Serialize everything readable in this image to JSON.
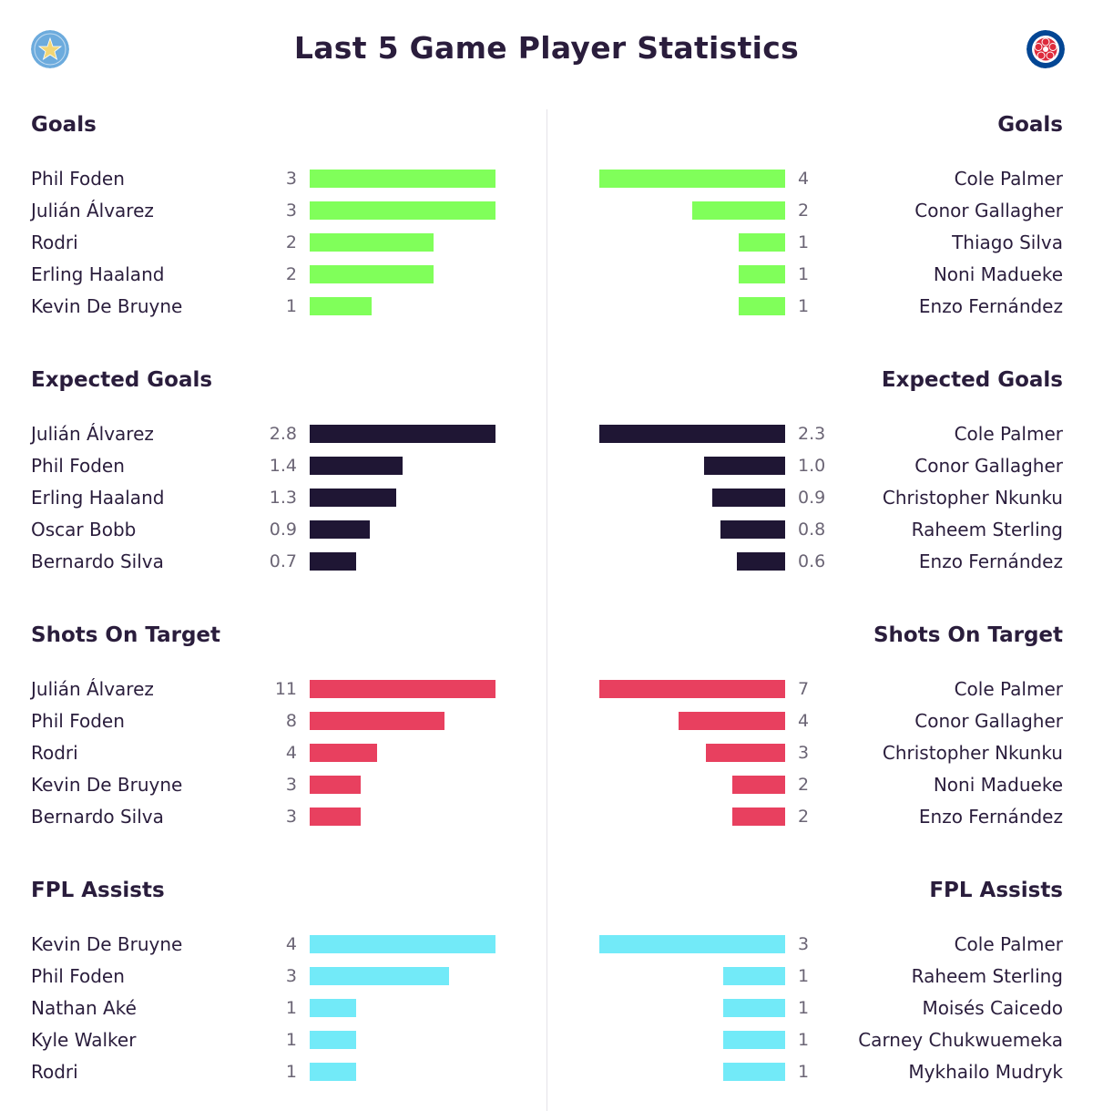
{
  "title": "Last 5 Game Player Statistics",
  "badges": {
    "home": {
      "icon": "star-club-badge-icon",
      "color": "#6cabdd"
    },
    "away": {
      "icon": "lion-club-badge-icon",
      "color": "#034694"
    }
  },
  "colors": {
    "goals": "#80ff5a",
    "expected_goals": "#1f1634",
    "shots_on_target": "#e8405f",
    "fpl_assists": "#72eaf8"
  },
  "chart_data": [
    {
      "type": "bar",
      "side": "home",
      "title": "Goals",
      "color_key": "goals",
      "categories": [
        "Phil Foden",
        "Julián Álvarez",
        "Rodri",
        "Erling Haaland",
        "Kevin De Bruyne"
      ],
      "labels": [
        "3",
        "3",
        "2",
        "2",
        "1"
      ],
      "values": [
        3,
        3,
        2,
        2,
        1
      ]
    },
    {
      "type": "bar",
      "side": "away",
      "title": "Goals",
      "color_key": "goals",
      "categories": [
        "Cole Palmer",
        "Conor Gallagher",
        "Thiago Silva",
        "Noni Madueke",
        "Enzo Fernández"
      ],
      "labels": [
        "4",
        "2",
        "1",
        "1",
        "1"
      ],
      "values": [
        4,
        2,
        1,
        1,
        1
      ]
    },
    {
      "type": "bar",
      "side": "home",
      "title": "Expected Goals",
      "color_key": "expected_goals",
      "categories": [
        "Julián Álvarez",
        "Phil Foden",
        "Erling Haaland",
        "Oscar Bobb",
        "Bernardo Silva"
      ],
      "labels": [
        "2.8",
        "1.4",
        "1.3",
        "0.9",
        "0.7"
      ],
      "values": [
        2.8,
        1.4,
        1.3,
        0.9,
        0.7
      ]
    },
    {
      "type": "bar",
      "side": "away",
      "title": "Expected Goals",
      "color_key": "expected_goals",
      "categories": [
        "Cole Palmer",
        "Conor Gallagher",
        "Christopher Nkunku",
        "Raheem Sterling",
        "Enzo Fernández"
      ],
      "labels": [
        "2.3",
        "1.0",
        "0.9",
        "0.8",
        "0.6"
      ],
      "values": [
        2.3,
        1.0,
        0.9,
        0.8,
        0.6
      ]
    },
    {
      "type": "bar",
      "side": "home",
      "title": "Shots On Target",
      "color_key": "shots_on_target",
      "categories": [
        "Julián Álvarez",
        "Phil Foden",
        "Rodri",
        "Kevin De Bruyne",
        "Bernardo Silva"
      ],
      "labels": [
        "11",
        "8",
        "4",
        "3",
        "3"
      ],
      "values": [
        11,
        8,
        4,
        3,
        3
      ]
    },
    {
      "type": "bar",
      "side": "away",
      "title": "Shots On Target",
      "color_key": "shots_on_target",
      "categories": [
        "Cole Palmer",
        "Conor Gallagher",
        "Christopher Nkunku",
        "Noni Madueke",
        "Enzo Fernández"
      ],
      "labels": [
        "7",
        "4",
        "3",
        "2",
        "2"
      ],
      "values": [
        7,
        4,
        3,
        2,
        2
      ]
    },
    {
      "type": "bar",
      "side": "home",
      "title": "FPL Assists",
      "color_key": "fpl_assists",
      "categories": [
        "Kevin De Bruyne",
        "Phil Foden",
        "Nathan Aké",
        "Kyle Walker",
        "Rodri"
      ],
      "labels": [
        "4",
        "3",
        "1",
        "1",
        "1"
      ],
      "values": [
        4,
        3,
        1,
        1,
        1
      ]
    },
    {
      "type": "bar",
      "side": "away",
      "title": "FPL Assists",
      "color_key": "fpl_assists",
      "categories": [
        "Cole Palmer",
        "Raheem Sterling",
        "Moisés Caicedo",
        "Carney Chukwuemeka",
        "Mykhailo Mudryk"
      ],
      "labels": [
        "3",
        "1",
        "1",
        "1",
        "1"
      ],
      "values": [
        3,
        1,
        1,
        1,
        1
      ]
    }
  ]
}
